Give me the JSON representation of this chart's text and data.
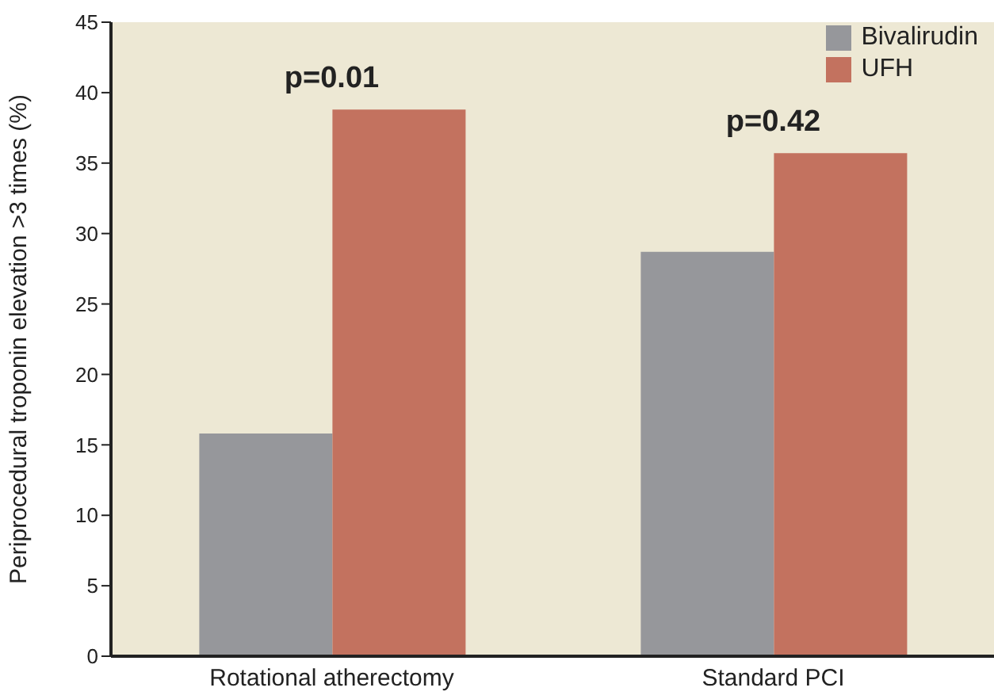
{
  "chart_data": {
    "type": "bar",
    "ylabel": "Periprocedural troponin elevation >3 times (%)",
    "categories": [
      "Rotational atherectomy",
      "Standard PCI"
    ],
    "series": [
      {
        "name": "Bivalirudin",
        "color": "#96979b",
        "values": [
          15.8,
          28.7
        ]
      },
      {
        "name": "UFH",
        "color": "#c3725f",
        "values": [
          38.8,
          35.7
        ]
      }
    ],
    "ylim": [
      0,
      45
    ],
    "yticks": [
      0,
      5,
      10,
      15,
      20,
      25,
      30,
      35,
      40,
      45
    ],
    "grid": false,
    "legend": "top right",
    "annotations": [
      "p=0.01",
      "p=0.42"
    ]
  }
}
